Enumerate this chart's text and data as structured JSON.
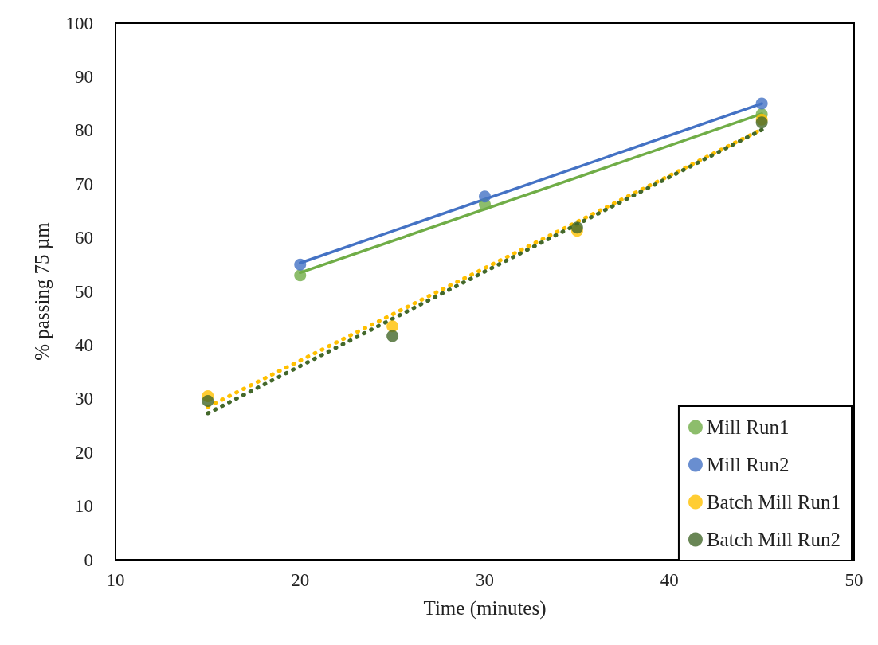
{
  "chart_data": {
    "type": "scatter",
    "xlabel": "Time (minutes)",
    "ylabel": "% passing 75 µm",
    "xlim": [
      10,
      50
    ],
    "xticks": [
      10,
      20,
      30,
      40,
      50
    ],
    "ylim": [
      0,
      100
    ],
    "yticks": [
      0,
      10,
      20,
      30,
      40,
      50,
      60,
      70,
      80,
      90,
      100
    ],
    "grid": false,
    "legend": "bottom right",
    "marker": "circle",
    "series": [
      {
        "type": "line",
        "color": "#70ad47",
        "x": [
          20,
          45
        ],
        "values": [
          53.5,
          83.1
        ],
        "line_style": "solid",
        "marker": "none"
      },
      {
        "type": "line",
        "color": "#4472c4",
        "x": [
          20,
          45
        ],
        "values": [
          55.3,
          85
        ],
        "line_style": "solid",
        "marker": "none"
      },
      {
        "type": "line",
        "color": "#ffc000",
        "x": [
          15,
          45
        ],
        "values": [
          28.5,
          80.2
        ],
        "line_style": "dotted",
        "marker": "none"
      },
      {
        "type": "line",
        "color": "#43682b",
        "x": [
          15,
          45
        ],
        "values": [
          27.3,
          80.1
        ],
        "line_style": "dotted",
        "marker": "none"
      },
      {
        "name": "Mill Run1",
        "color": "#70ad47",
        "x": [
          20,
          30,
          45
        ],
        "values": [
          53,
          66.2,
          83
        ]
      },
      {
        "name": "Mill Run2",
        "color": "#4472c4",
        "x": [
          20,
          30,
          45
        ],
        "values": [
          55,
          67.7,
          85
        ]
      },
      {
        "name": "Batch Mill Run1",
        "color": "#ffc000",
        "x": [
          15,
          25,
          35,
          45
        ],
        "values": [
          30.5,
          43.5,
          61.3,
          82
        ]
      },
      {
        "name": "Batch Mill Run2",
        "color": "#43682b",
        "x": [
          15,
          25,
          35,
          45
        ],
        "values": [
          29.6,
          41.7,
          61.9,
          81.5
        ]
      }
    ]
  }
}
